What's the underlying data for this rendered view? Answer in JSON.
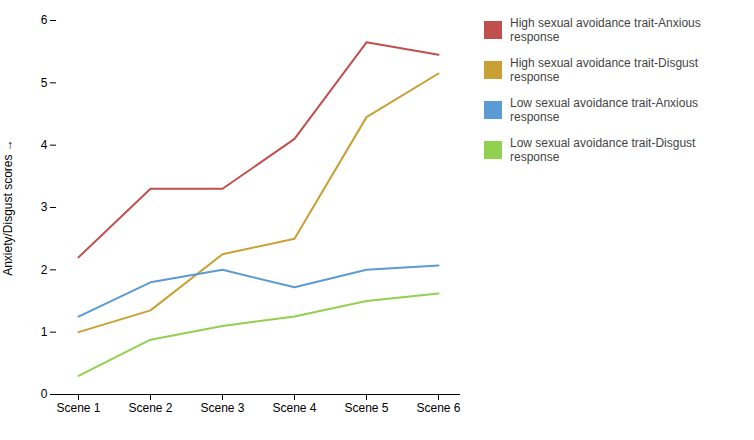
{
  "chart_data": {
    "type": "line",
    "categories": [
      "Scene 1",
      "Scene 2",
      "Scene 3",
      "Scene 4",
      "Scene 5",
      "Scene 6"
    ],
    "series": [
      {
        "name": "High sexual avoidance trait-Anxious response",
        "color": "#c0504d",
        "values": [
          2.2,
          3.3,
          3.3,
          4.1,
          5.65,
          5.45
        ]
      },
      {
        "name": "High sexual avoidance trait-Disgust response",
        "color": "#c8a034",
        "values": [
          1.0,
          1.35,
          2.25,
          2.5,
          4.45,
          5.15
        ]
      },
      {
        "name": "Low sexual avoidance trait-Anxious response",
        "color": "#5b9bd5",
        "values": [
          1.25,
          1.8,
          2.0,
          1.72,
          2.0,
          2.07
        ]
      },
      {
        "name": "Low sexual avoidance trait-Disgust response",
        "color": "#92d050",
        "values": [
          0.3,
          0.88,
          1.1,
          1.25,
          1.5,
          1.62
        ]
      }
    ],
    "ylabel": "Anxiety/Disgust scores",
    "ylim": [
      0,
      6
    ],
    "yticks": [
      0,
      1,
      2,
      3,
      4,
      5,
      6
    ],
    "grid": false,
    "legend": "right"
  }
}
